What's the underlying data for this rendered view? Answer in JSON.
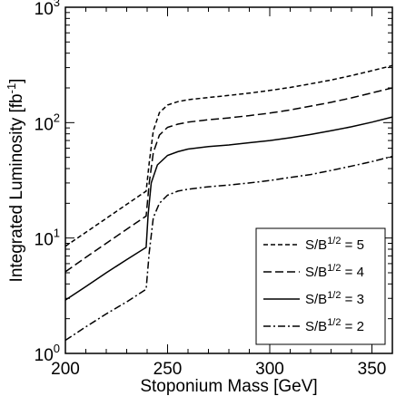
{
  "chart_data": {
    "type": "line",
    "xlabel": "Stoponium Mass   [GeV]",
    "ylabel_main": "Integrated Luminosity  [fb",
    "ylabel_sup": "-1",
    "ylabel_close": "]",
    "xlim": [
      200,
      360
    ],
    "ylim": [
      1,
      1000
    ],
    "yscale": "log",
    "grid": false,
    "legend_placement": "bottom-right",
    "x_ticks": [
      {
        "value": 200,
        "label": "200"
      },
      {
        "value": 250,
        "label": "250"
      },
      {
        "value": 300,
        "label": "300"
      },
      {
        "value": 350,
        "label": "350"
      }
    ],
    "y_ticks": [
      {
        "value": 1,
        "base": "10",
        "exp": "0"
      },
      {
        "value": 10,
        "base": "10",
        "exp": "1"
      },
      {
        "value": 100,
        "base": "10",
        "exp": "2"
      },
      {
        "value": 1000,
        "base": "10",
        "exp": "3"
      }
    ],
    "series": [
      {
        "name_prefix": "S/B",
        "name_sup": "1/2",
        "name_suffix": " = 5",
        "dash": "dashed-short",
        "points": [
          [
            200,
            8.5
          ],
          [
            210,
            11.2
          ],
          [
            220,
            14.8
          ],
          [
            230,
            19.6
          ],
          [
            239.5,
            25.5
          ],
          [
            241,
            45
          ],
          [
            243,
            85
          ],
          [
            246,
            122
          ],
          [
            250,
            142
          ],
          [
            255,
            152
          ],
          [
            260,
            158
          ],
          [
            270,
            165
          ],
          [
            280,
            172
          ],
          [
            290,
            180
          ],
          [
            300,
            190
          ],
          [
            310,
            202
          ],
          [
            320,
            217
          ],
          [
            330,
            234
          ],
          [
            340,
            256
          ],
          [
            350,
            282
          ],
          [
            360,
            312
          ]
        ]
      },
      {
        "name_prefix": "S/B",
        "name_sup": "1/2",
        "name_suffix": " = 4",
        "dash": "dashed-long",
        "points": [
          [
            200,
            5.1
          ],
          [
            210,
            6.8
          ],
          [
            220,
            9.0
          ],
          [
            230,
            11.9
          ],
          [
            239.5,
            15.5
          ],
          [
            241,
            30
          ],
          [
            243,
            55
          ],
          [
            246,
            78
          ],
          [
            250,
            91
          ],
          [
            255,
            97
          ],
          [
            260,
            101
          ],
          [
            270,
            106
          ],
          [
            280,
            110
          ],
          [
            290,
            115
          ],
          [
            300,
            121
          ],
          [
            310,
            129
          ],
          [
            320,
            139
          ],
          [
            330,
            150
          ],
          [
            340,
            164
          ],
          [
            350,
            181
          ],
          [
            360,
            200
          ]
        ]
      },
      {
        "name_prefix": "S/B",
        "name_sup": "1/2",
        "name_suffix": " = 3",
        "dash": "solid",
        "points": [
          [
            200,
            2.9
          ],
          [
            210,
            3.8
          ],
          [
            220,
            5.0
          ],
          [
            230,
            6.5
          ],
          [
            239.5,
            8.3
          ],
          [
            240.5,
            16
          ],
          [
            242,
            30
          ],
          [
            245,
            43
          ],
          [
            250,
            52
          ],
          [
            255,
            56
          ],
          [
            260,
            59
          ],
          [
            270,
            62
          ],
          [
            280,
            64
          ],
          [
            290,
            67
          ],
          [
            300,
            70
          ],
          [
            310,
            74
          ],
          [
            320,
            79
          ],
          [
            330,
            85
          ],
          [
            340,
            92
          ],
          [
            350,
            101
          ],
          [
            360,
            112
          ]
        ]
      },
      {
        "name_prefix": "S/B",
        "name_sup": "1/2",
        "name_suffix": " = 2",
        "dash": "dash-dot",
        "points": [
          [
            200,
            1.3
          ],
          [
            210,
            1.7
          ],
          [
            220,
            2.2
          ],
          [
            230,
            2.8
          ],
          [
            239.5,
            3.6
          ],
          [
            241,
            7.5
          ],
          [
            243,
            15
          ],
          [
            246,
            20
          ],
          [
            250,
            23.5
          ],
          [
            255,
            25.5
          ],
          [
            260,
            26.5
          ],
          [
            270,
            27.8
          ],
          [
            280,
            28.8
          ],
          [
            290,
            30
          ],
          [
            300,
            31.5
          ],
          [
            310,
            33.5
          ],
          [
            320,
            35.5
          ],
          [
            330,
            38.5
          ],
          [
            340,
            42
          ],
          [
            350,
            46
          ],
          [
            360,
            51
          ]
        ]
      }
    ]
  }
}
